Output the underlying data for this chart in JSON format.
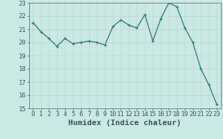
{
  "x": [
    0,
    1,
    2,
    3,
    4,
    5,
    6,
    7,
    8,
    9,
    10,
    11,
    12,
    13,
    14,
    15,
    16,
    17,
    18,
    19,
    20,
    21,
    22,
    23
  ],
  "y": [
    21.5,
    20.8,
    20.3,
    19.7,
    20.3,
    19.9,
    20.0,
    20.1,
    20.0,
    19.8,
    21.2,
    21.7,
    21.3,
    21.1,
    22.1,
    20.1,
    21.8,
    23.0,
    22.7,
    21.1,
    20.0,
    18.0,
    16.8,
    15.3
  ],
  "line_color": "#2e7d6e",
  "marker": "+",
  "marker_size": 3,
  "background_color": "#cce8e4",
  "grid_color_major": "#b8d4d0",
  "grid_color_minor": "#d4e8e4",
  "xlabel": "Humidex (Indice chaleur)",
  "xlim": [
    -0.5,
    23.5
  ],
  "ylim": [
    15,
    23
  ],
  "yticks": [
    15,
    16,
    17,
    18,
    19,
    20,
    21,
    22,
    23
  ],
  "xticks": [
    0,
    1,
    2,
    3,
    4,
    5,
    6,
    7,
    8,
    9,
    10,
    11,
    12,
    13,
    14,
    15,
    16,
    17,
    18,
    19,
    20,
    21,
    22,
    23
  ],
  "tick_fontsize": 6.5,
  "xlabel_fontsize": 8,
  "linewidth": 1.0
}
